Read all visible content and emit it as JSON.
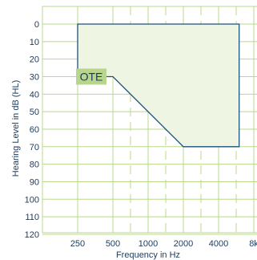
{
  "chart_data": {
    "type": "area",
    "title": "",
    "xlabel": "Frequency in Hz",
    "ylabel": "Hearing Level in dB (HL)",
    "x_tick_labels": [
      "250",
      "500",
      "1000",
      "2000",
      "4000",
      "8k"
    ],
    "y_tick_labels": [
      "0",
      "10",
      "20",
      "30",
      "40",
      "50",
      "60",
      "70",
      "80",
      "90",
      "100",
      "110",
      "120"
    ],
    "ylim": [
      0,
      120
    ],
    "y_inverted": true,
    "grid": true,
    "fitting_range": {
      "name": "OTE",
      "x": [
        "250",
        "250",
        "500",
        "2000",
        "6000",
        "6000"
      ],
      "y": [
        0,
        30,
        30,
        70,
        70,
        0
      ]
    }
  },
  "colors": {
    "grid_solid": "#b9d889",
    "grid_dashed": "#b9d889",
    "area_fill": "#eef6e3",
    "outline": "#1f4f7a",
    "label_bg": "#b8d58d",
    "text": "#1b3a5c"
  }
}
